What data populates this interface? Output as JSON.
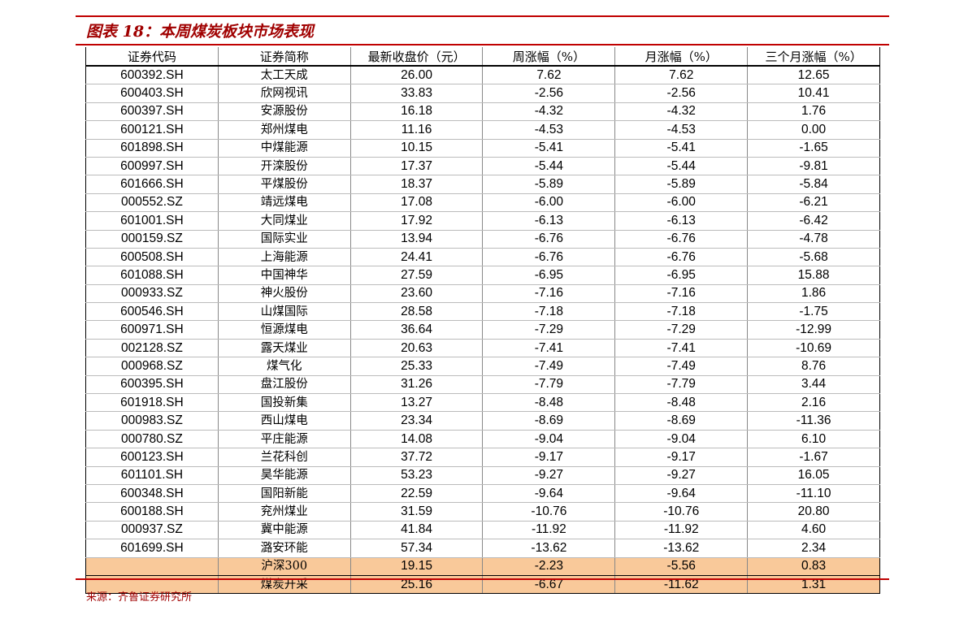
{
  "header": {
    "title": "图表 18：本周煤炭板块市场表现"
  },
  "table": {
    "columns": [
      "证券代码",
      "证券简称",
      "最新收盘价（元）",
      "周涨幅（%）",
      "月涨幅（%）",
      "三个月涨幅（%）"
    ],
    "rows": [
      [
        "600392.SH",
        "太工天成",
        "26.00",
        "7.62",
        "7.62",
        "12.65"
      ],
      [
        "600403.SH",
        "欣网视讯",
        "33.83",
        "-2.56",
        "-2.56",
        "10.41"
      ],
      [
        "600397.SH",
        "安源股份",
        "16.18",
        "-4.32",
        "-4.32",
        "1.76"
      ],
      [
        "600121.SH",
        "郑州煤电",
        "11.16",
        "-4.53",
        "-4.53",
        "0.00"
      ],
      [
        "601898.SH",
        "中煤能源",
        "10.15",
        "-5.41",
        "-5.41",
        "-1.65"
      ],
      [
        "600997.SH",
        "开滦股份",
        "17.37",
        "-5.44",
        "-5.44",
        "-9.81"
      ],
      [
        "601666.SH",
        "平煤股份",
        "18.37",
        "-5.89",
        "-5.89",
        "-5.84"
      ],
      [
        "000552.SZ",
        "靖远煤电",
        "17.08",
        "-6.00",
        "-6.00",
        "-6.21"
      ],
      [
        "601001.SH",
        "大同煤业",
        "17.92",
        "-6.13",
        "-6.13",
        "-6.42"
      ],
      [
        "000159.SZ",
        "国际实业",
        "13.94",
        "-6.76",
        "-6.76",
        "-4.78"
      ],
      [
        "600508.SH",
        "上海能源",
        "24.41",
        "-6.76",
        "-6.76",
        "-5.68"
      ],
      [
        "601088.SH",
        "中国神华",
        "27.59",
        "-6.95",
        "-6.95",
        "15.88"
      ],
      [
        "000933.SZ",
        "神火股份",
        "23.60",
        "-7.16",
        "-7.16",
        "1.86"
      ],
      [
        "600546.SH",
        "山煤国际",
        "28.58",
        "-7.18",
        "-7.18",
        "-1.75"
      ],
      [
        "600971.SH",
        "恒源煤电",
        "36.64",
        "-7.29",
        "-7.29",
        "-12.99"
      ],
      [
        "002128.SZ",
        "露天煤业",
        "20.63",
        "-7.41",
        "-7.41",
        "-10.69"
      ],
      [
        "000968.SZ",
        "煤气化",
        "25.33",
        "-7.49",
        "-7.49",
        "8.76"
      ],
      [
        "600395.SH",
        "盘江股份",
        "31.26",
        "-7.79",
        "-7.79",
        "3.44"
      ],
      [
        "601918.SH",
        "国投新集",
        "13.27",
        "-8.48",
        "-8.48",
        "2.16"
      ],
      [
        "000983.SZ",
        "西山煤电",
        "23.34",
        "-8.69",
        "-8.69",
        "-11.36"
      ],
      [
        "000780.SZ",
        "平庄能源",
        "14.08",
        "-9.04",
        "-9.04",
        "6.10"
      ],
      [
        "600123.SH",
        "兰花科创",
        "37.72",
        "-9.17",
        "-9.17",
        "-1.67"
      ],
      [
        "601101.SH",
        "昊华能源",
        "53.23",
        "-9.27",
        "-9.27",
        "16.05"
      ],
      [
        "600348.SH",
        "国阳新能",
        "22.59",
        "-9.64",
        "-9.64",
        "-11.10"
      ],
      [
        "600188.SH",
        "兖州煤业",
        "31.59",
        "-10.76",
        "-10.76",
        "20.80"
      ],
      [
        "000937.SZ",
        "冀中能源",
        "41.84",
        "-11.92",
        "-11.92",
        "4.60"
      ],
      [
        "601699.SH",
        "潞安环能",
        "57.34",
        "-13.62",
        "-13.62",
        "2.34"
      ],
      [
        null,
        "沪深300",
        "19.15",
        "-2.23",
        "-5.56",
        "0.83"
      ],
      [
        null,
        "煤炭开采",
        "25.16",
        "-6.67",
        "-11.62",
        "1.31"
      ]
    ]
  },
  "source": "来源：齐鲁证券研究所"
}
